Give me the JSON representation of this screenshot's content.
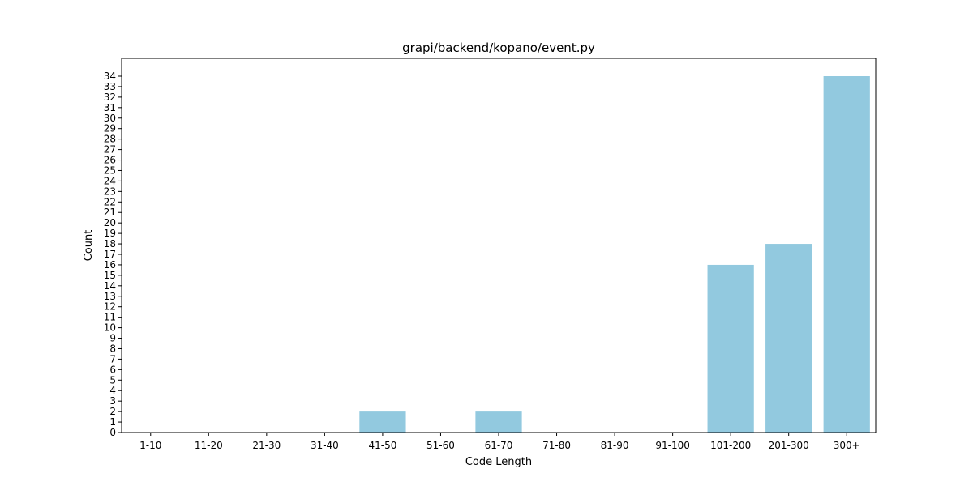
{
  "chart_data": {
    "type": "bar",
    "title": "grapi/backend/kopano/event.py",
    "xlabel": "Code Length",
    "ylabel": "Count",
    "categories": [
      "1-10",
      "11-20",
      "21-30",
      "31-40",
      "41-50",
      "51-60",
      "61-70",
      "71-80",
      "81-90",
      "91-100",
      "101-200",
      "201-300",
      "300+"
    ],
    "values": [
      0,
      0,
      0,
      0,
      2,
      0,
      2,
      0,
      0,
      0,
      16,
      18,
      34
    ],
    "ylim": [
      0,
      35.7
    ],
    "yticks": [
      0,
      1,
      2,
      3,
      4,
      5,
      6,
      7,
      8,
      9,
      10,
      11,
      12,
      13,
      14,
      15,
      16,
      17,
      18,
      19,
      20,
      21,
      22,
      23,
      24,
      25,
      26,
      27,
      28,
      29,
      30,
      31,
      32,
      33,
      34
    ],
    "grid": false,
    "bar_color": "#92c9df"
  }
}
